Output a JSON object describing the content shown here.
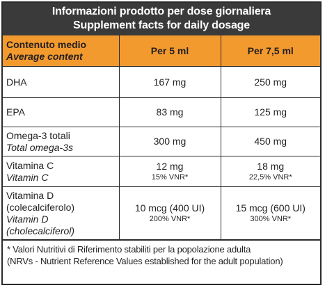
{
  "title": {
    "line1": "Informazioni prodotto per dose giornaliera",
    "line2": "Supplement facts for daily dosage"
  },
  "header": {
    "col1_line1": "Contenuto medio",
    "col1_line2": "Average content",
    "col2": "Per 5 ml",
    "col3": "Per 7,5 ml"
  },
  "rows": {
    "dha": {
      "name": "DHA",
      "v5": "167 mg",
      "v75": "250 mg"
    },
    "epa": {
      "name": "EPA",
      "v5": "83 mg",
      "v75": "125 mg"
    },
    "omega": {
      "name": "Omega-3 totali",
      "name_en": "Total omega-3s",
      "v5": "300 mg",
      "v75": "450 mg"
    },
    "vitc": {
      "name": "Vitamina C",
      "name_en": "Vitamin C",
      "v5": "12 mg",
      "v5_nrv": "15% VNR*",
      "v75": "18 mg",
      "v75_nrv": "22,5% VNR*"
    },
    "vitd": {
      "name": "Vitamina D",
      "name2": "(colecalciferolo)",
      "name_en": "Vitamin D",
      "name_en2": "(cholecalciferol)",
      "v5": "10 mcg (400 UI)",
      "v5_nrv": "200% VNR*",
      "v75": "15 mcg (600 UI)",
      "v75_nrv": "300% VNR*"
    }
  },
  "footnote": {
    "line1": "* Valori Nutritivi di Riferimento stabiliti per la popolazione adulta",
    "line2": "(NRVs - Nutrient Reference Values established for the adult population)"
  }
}
